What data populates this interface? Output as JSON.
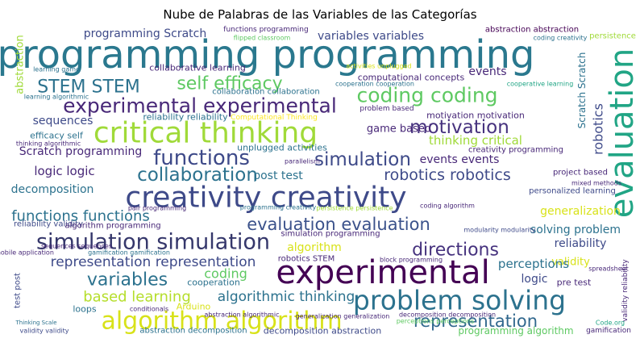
{
  "chart_data": {
    "type": "wordcloud",
    "title": "Nube de Palabras de las Variables de las Categorías",
    "words": [
      "programming programming",
      "creativity creativity",
      "experimental",
      "critical thinking",
      "experimental experimental",
      "evaluation",
      "problem solving",
      "algorithm algorithm",
      "simulation simulation",
      "coding coding",
      "STEM STEM",
      "self efficacy",
      "functions",
      "motivation",
      "simulation",
      "collaboration",
      "robotics robotics",
      "evaluation evaluation",
      "functions functions",
      "directions",
      "representation representation",
      "variables",
      "based learning",
      "algorithmic thinking",
      "representation",
      "programming Scratch",
      "variables variables",
      "abstraction abstraction",
      "collaborative learning",
      "events",
      "computational concepts",
      "sequences",
      "efficacy self",
      "game based",
      "thinking critical",
      "Scratch programming",
      "logic logic",
      "decomposition",
      "post test",
      "events events",
      "unplugged activities",
      "generalization",
      "solving problem",
      "reliability",
      "validity",
      "perceptions",
      "logic",
      "pre test",
      "robotics",
      "Scratch Scratch",
      "abstraction",
      "reliability validity",
      "algorithm programming",
      "coding",
      "cooperation",
      "loops",
      "Arduino",
      "conditionals",
      "decomposition abstraction",
      "abstraction decomposition",
      "programming algorithm",
      "gamification",
      "algorithm",
      "robotics STEM",
      "simulation programming",
      "motivation motivation",
      "reliability reliability",
      "Computational Thinking",
      "creativity programming",
      "project based",
      "personalized learning",
      "collaboration collaboration",
      "functions programming",
      "persistence",
      "mobile application",
      "test post",
      "validity validity",
      "validity reliability",
      "learning game",
      "parallelism",
      "sequences sequences",
      "gamification gamification",
      "block programming",
      "abstraction algorithmic",
      "generalization generalization",
      "decomposition decomposition",
      "thinking algorithmic",
      "learning algorithmic",
      "problem based",
      "cooperation cooperation",
      "cooperative learning",
      "activities unplugged",
      "flipped classroom",
      "coding creativity",
      "pair programming",
      "programming creativity",
      "persistence persistence",
      "coding algorithm",
      "mixed methods",
      "modularity modularity",
      "Code.org",
      "Thinking Scale",
      "spreadsheet",
      "perceptions perceptions"
    ]
  }
}
